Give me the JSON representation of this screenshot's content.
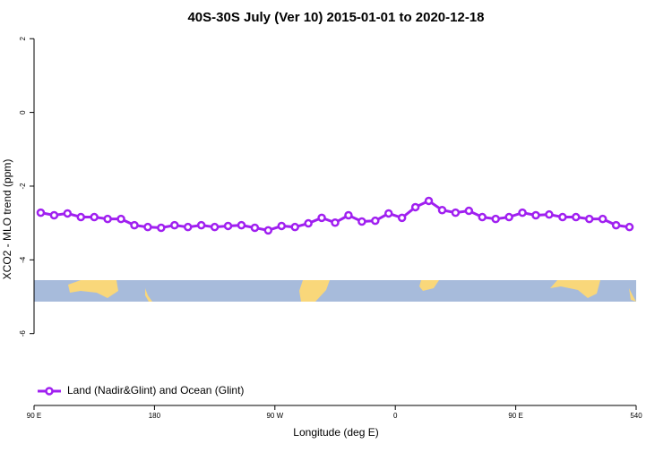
{
  "chart_data": {
    "type": "line",
    "title": "40S-30S July (Ver 10)   2015-01-01 to 2020-12-18",
    "x_label": "Longitude (deg E)",
    "y_label": "XCO2 - MLO trend (ppm)",
    "x": [
      95,
      105,
      115,
      125,
      135,
      145,
      155,
      165,
      175,
      185,
      195,
      205,
      215,
      225,
      235,
      245,
      255,
      265,
      275,
      285,
      295,
      305,
      315,
      325,
      335,
      345,
      355,
      365,
      375,
      385,
      395,
      405,
      415,
      425,
      435,
      445,
      455,
      465,
      475,
      485,
      495,
      505,
      515,
      525,
      535
    ],
    "series": [
      {
        "name": "Land (Nadir&Glint) and Ocean (Glint)",
        "color": "#a020f0",
        "values": [
          -2.72,
          -2.79,
          -2.74,
          -2.84,
          -2.84,
          -2.89,
          -2.89,
          -3.06,
          -3.11,
          -3.13,
          -3.06,
          -3.11,
          -3.06,
          -3.11,
          -3.08,
          -3.06,
          -3.13,
          -3.2,
          -3.08,
          -3.11,
          -3.01,
          -2.86,
          -2.99,
          -2.79,
          -2.96,
          -2.94,
          -2.74,
          -2.86,
          -2.57,
          -2.4,
          -2.65,
          -2.72,
          -2.67,
          -2.84,
          -2.89,
          -2.84,
          -2.72,
          -2.79,
          -2.77,
          -2.84,
          -2.84,
          -2.89,
          -2.89,
          -3.06,
          -3.11
        ]
      }
    ],
    "xlim": [
      90,
      540
    ],
    "xticks": [
      {
        "value": 90,
        "label": "90 E"
      },
      180,
      {
        "value": 270,
        "label": "90 W"
      },
      {
        "value": 360,
        "label": "0"
      },
      {
        "value": 450,
        "label": "90 E"
      },
      540
    ],
    "ylim": [
      -7.95,
      2.2
    ],
    "yticks": [
      2,
      0,
      -2,
      -4,
      -6
    ],
    "legend_position": "bottom-left"
  }
}
